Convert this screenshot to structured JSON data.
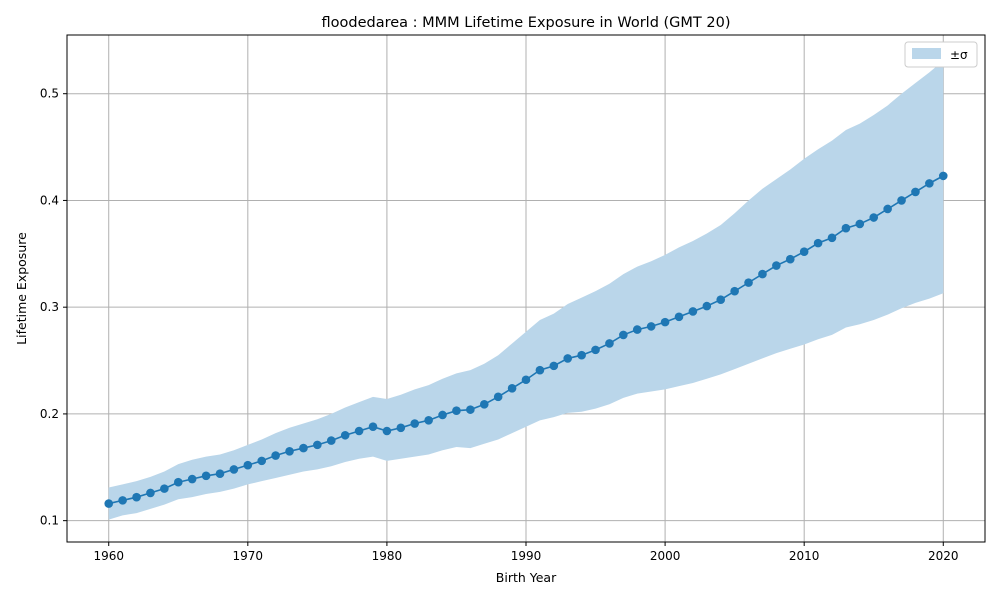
{
  "chart_data": {
    "type": "line",
    "title": "floodedarea : MMM Lifetime Exposure in World (GMT 20)",
    "xlabel": "Birth Year",
    "ylabel": "Lifetime Exposure",
    "xlim": [
      1957,
      2023
    ],
    "ylim": [
      0.08,
      0.555
    ],
    "xticks": [
      1960,
      1970,
      1980,
      1990,
      2000,
      2010,
      2020
    ],
    "yticks": [
      0.1,
      0.2,
      0.3,
      0.4,
      0.5
    ],
    "ytick_labels": [
      "0.1",
      "0.2",
      "0.3",
      "0.4",
      "0.5"
    ],
    "grid": true,
    "legend": {
      "placement": "top-right",
      "entries": [
        "±σ"
      ]
    },
    "colors": {
      "line": "#1f77b4",
      "band": "#bad6ea",
      "grid": "#b0b0b0"
    },
    "x": [
      1960,
      1961,
      1962,
      1963,
      1964,
      1965,
      1966,
      1967,
      1968,
      1969,
      1970,
      1971,
      1972,
      1973,
      1974,
      1975,
      1976,
      1977,
      1978,
      1979,
      1980,
      1981,
      1982,
      1983,
      1984,
      1985,
      1986,
      1987,
      1988,
      1989,
      1990,
      1991,
      1992,
      1993,
      1994,
      1995,
      1996,
      1997,
      1998,
      1999,
      2000,
      2001,
      2002,
      2003,
      2004,
      2005,
      2006,
      2007,
      2008,
      2009,
      2010,
      2011,
      2012,
      2013,
      2014,
      2015,
      2016,
      2017,
      2018,
      2019,
      2020
    ],
    "series": [
      {
        "values": [
          0.116,
          0.119,
          0.122,
          0.126,
          0.13,
          0.136,
          0.139,
          0.142,
          0.144,
          0.148,
          0.152,
          0.156,
          0.161,
          0.165,
          0.168,
          0.171,
          0.175,
          0.18,
          0.184,
          0.188,
          0.184,
          0.187,
          0.191,
          0.194,
          0.199,
          0.203,
          0.204,
          0.209,
          0.216,
          0.224,
          0.232,
          0.241,
          0.245,
          0.252,
          0.255,
          0.26,
          0.266,
          0.274,
          0.279,
          0.282,
          0.286,
          0.291,
          0.296,
          0.301,
          0.307,
          0.315,
          0.323,
          0.331,
          0.339,
          0.345,
          0.352,
          0.36,
          0.365,
          0.374,
          0.378,
          0.384,
          0.392,
          0.4,
          0.408,
          0.416,
          0.423
        ],
        "upper": [
          0.131,
          0.134,
          0.137,
          0.141,
          0.146,
          0.153,
          0.157,
          0.16,
          0.162,
          0.166,
          0.171,
          0.176,
          0.182,
          0.187,
          0.191,
          0.195,
          0.2,
          0.206,
          0.211,
          0.216,
          0.214,
          0.218,
          0.223,
          0.227,
          0.233,
          0.238,
          0.241,
          0.247,
          0.255,
          0.266,
          0.277,
          0.288,
          0.294,
          0.303,
          0.309,
          0.315,
          0.322,
          0.331,
          0.338,
          0.343,
          0.349,
          0.356,
          0.362,
          0.369,
          0.377,
          0.388,
          0.4,
          0.411,
          0.42,
          0.429,
          0.439,
          0.448,
          0.456,
          0.466,
          0.472,
          0.48,
          0.489,
          0.5,
          0.51,
          0.52,
          0.531
        ],
        "lower": [
          0.101,
          0.105,
          0.107,
          0.111,
          0.115,
          0.12,
          0.122,
          0.125,
          0.127,
          0.13,
          0.134,
          0.137,
          0.14,
          0.143,
          0.146,
          0.148,
          0.151,
          0.155,
          0.158,
          0.16,
          0.156,
          0.158,
          0.16,
          0.162,
          0.166,
          0.169,
          0.168,
          0.172,
          0.176,
          0.182,
          0.188,
          0.194,
          0.197,
          0.201,
          0.202,
          0.205,
          0.209,
          0.215,
          0.219,
          0.221,
          0.223,
          0.226,
          0.229,
          0.233,
          0.237,
          0.242,
          0.247,
          0.252,
          0.257,
          0.261,
          0.265,
          0.27,
          0.274,
          0.281,
          0.284,
          0.288,
          0.293,
          0.299,
          0.304,
          0.308,
          0.313
        ]
      }
    ]
  }
}
